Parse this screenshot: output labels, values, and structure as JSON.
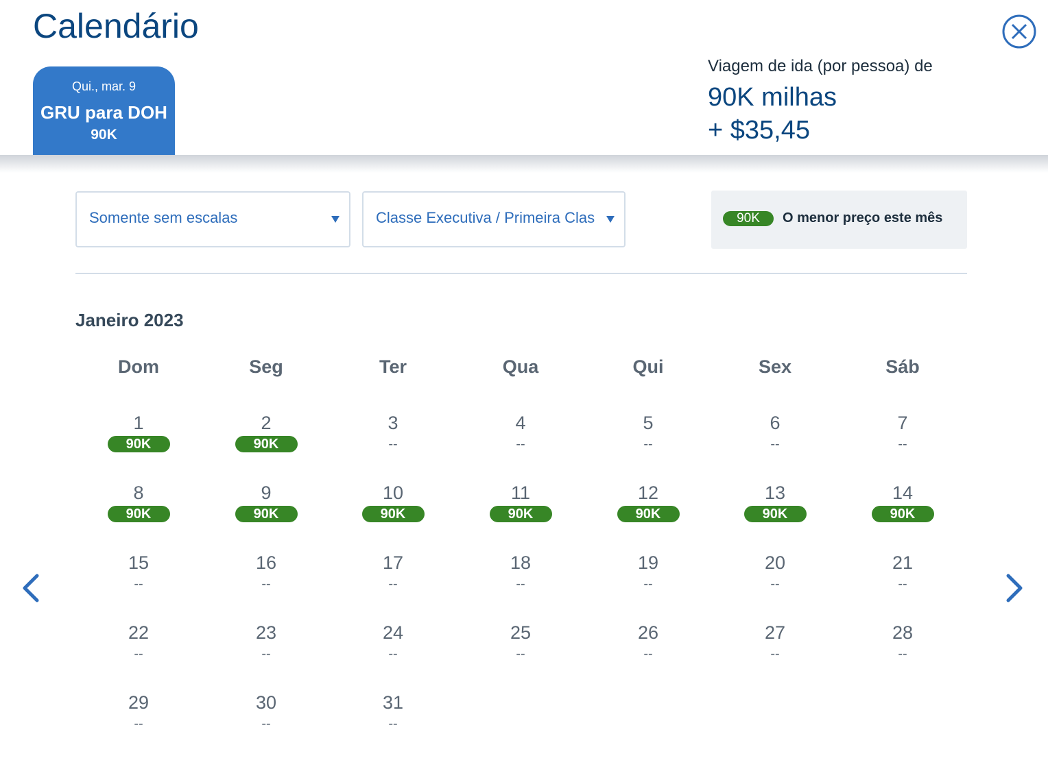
{
  "header": {
    "title": "Calendário",
    "trip_tab": {
      "date": "Qui., mar. 9",
      "route": "GRU para DOH",
      "miles": "90K"
    },
    "price": {
      "label": "Viagem de ida (por pessoa) de",
      "miles": "90K milhas",
      "cash": "+ $35,45"
    },
    "close_icon": "close-circle-icon"
  },
  "filters": {
    "stops": {
      "value": "Somente sem escalas"
    },
    "cabin": {
      "value": "Classe Executiva / Primeira Clas"
    }
  },
  "legend": {
    "badge": "90K",
    "text": "O menor preço este mês"
  },
  "calendar": {
    "month": "Janeiro 2023",
    "weekdays": [
      "Dom",
      "Seg",
      "Ter",
      "Qua",
      "Qui",
      "Sex",
      "Sáb"
    ],
    "days": [
      {
        "day": "1",
        "price": "90K"
      },
      {
        "day": "2",
        "price": "90K"
      },
      {
        "day": "3",
        "price": "--"
      },
      {
        "day": "4",
        "price": "--"
      },
      {
        "day": "5",
        "price": "--"
      },
      {
        "day": "6",
        "price": "--"
      },
      {
        "day": "7",
        "price": "--"
      },
      {
        "day": "8",
        "price": "90K"
      },
      {
        "day": "9",
        "price": "90K"
      },
      {
        "day": "10",
        "price": "90K"
      },
      {
        "day": "11",
        "price": "90K"
      },
      {
        "day": "12",
        "price": "90K"
      },
      {
        "day": "13",
        "price": "90K"
      },
      {
        "day": "14",
        "price": "90K"
      },
      {
        "day": "15",
        "price": "--"
      },
      {
        "day": "16",
        "price": "--"
      },
      {
        "day": "17",
        "price": "--"
      },
      {
        "day": "18",
        "price": "--"
      },
      {
        "day": "19",
        "price": "--"
      },
      {
        "day": "20",
        "price": "--"
      },
      {
        "day": "21",
        "price": "--"
      },
      {
        "day": "22",
        "price": "--"
      },
      {
        "day": "23",
        "price": "--"
      },
      {
        "day": "24",
        "price": "--"
      },
      {
        "day": "25",
        "price": "--"
      },
      {
        "day": "26",
        "price": "--"
      },
      {
        "day": "27",
        "price": "--"
      },
      {
        "day": "28",
        "price": "--"
      },
      {
        "day": "29",
        "price": "--"
      },
      {
        "day": "30",
        "price": "--"
      },
      {
        "day": "31",
        "price": "--"
      }
    ],
    "prev_icon": "chevron-left-icon",
    "next_icon": "chevron-right-icon"
  },
  "colors": {
    "primary_blue": "#3379c9",
    "title_blue": "#0b467f",
    "lowest_price_green": "#378626"
  }
}
